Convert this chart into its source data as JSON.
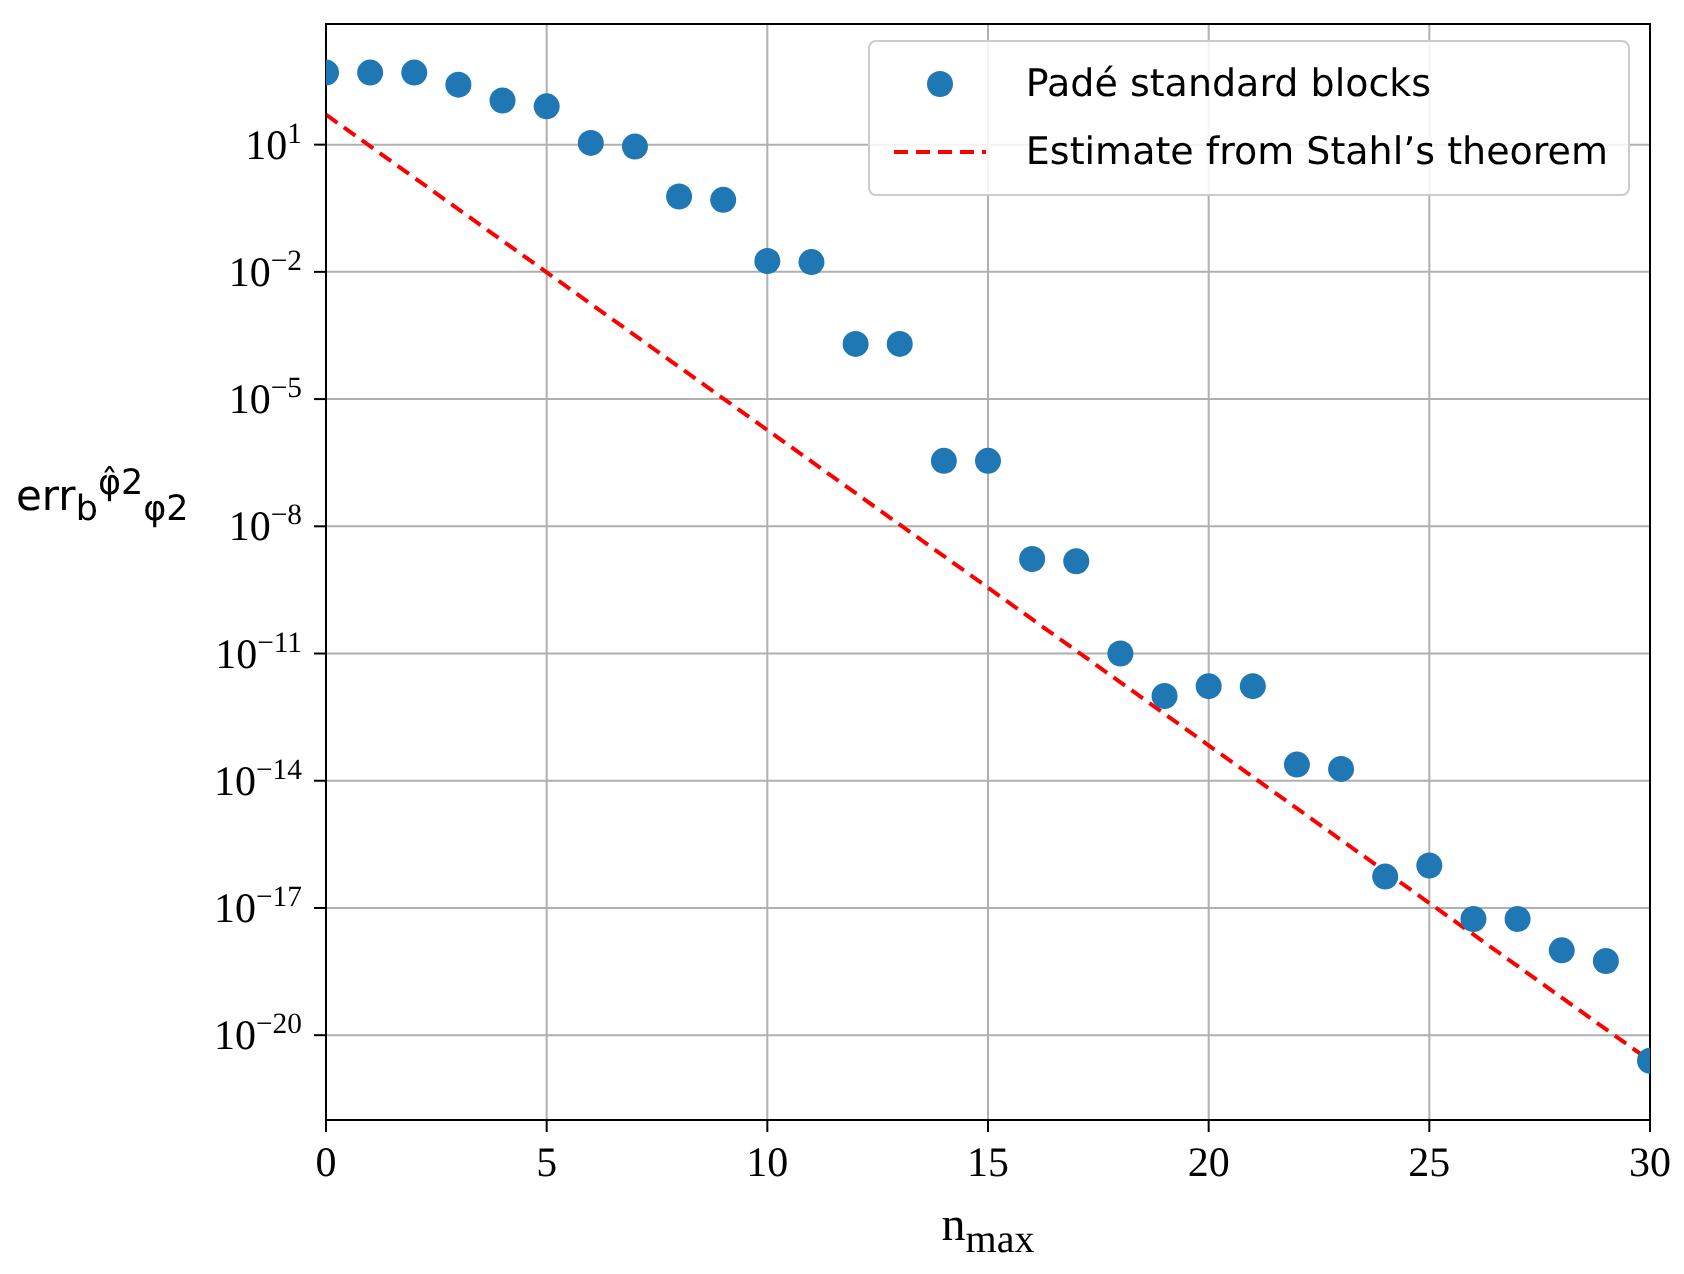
{
  "chart_data": {
    "type": "scatter",
    "xlabel": "n$_{max}$",
    "ylabel": "err$_{b}$$^{φ̂2}$$_{φ2}$",
    "xlim": [
      0,
      30
    ],
    "xticks": [
      0,
      5,
      10,
      15,
      20,
      25,
      30
    ],
    "ylim": [
      1e-22,
      7000.0
    ],
    "yticks": [
      {
        "value": 10,
        "label": "10$^{1}$"
      },
      {
        "value": 0.01,
        "label": "10$^{−2}$"
      },
      {
        "value": 1e-05,
        "label": "10$^{−5}$"
      },
      {
        "value": 1e-08,
        "label": "10$^{−8}$"
      },
      {
        "value": 1e-11,
        "label": "10$^{−11}$"
      },
      {
        "value": 1e-14,
        "label": "10$^{−14}$"
      },
      {
        "value": 1e-17,
        "label": "10$^{−17}$"
      },
      {
        "value": 1e-20,
        "label": "10$^{−20}$"
      }
    ],
    "log": "y",
    "grid": true,
    "legend": "top right",
    "series": [
      {
        "name": "Padé standard blocks",
        "marker": "circle",
        "color": "#1f77b4",
        "x": [
          0,
          1,
          2,
          3,
          4,
          5,
          6,
          7,
          8,
          9,
          10,
          11,
          12,
          13,
          14,
          15,
          16,
          17,
          18,
          19,
          20,
          21,
          22,
          23,
          24,
          25,
          26,
          27,
          28,
          29,
          30
        ],
        "values": [
          500,
          500,
          500,
          260,
          110,
          80,
          11,
          9,
          0.6,
          0.5,
          0.018,
          0.017,
          0.0002,
          0.0002,
          3.5e-07,
          3.5e-07,
          1.7e-09,
          1.5e-09,
          1e-11,
          1e-12,
          1.7e-12,
          1.7e-12,
          2.4e-14,
          1.9e-14,
          5.5e-17,
          1e-16,
          5.5e-18,
          5.5e-18,
          1e-18,
          5.6e-19,
          2.5e-21
        ]
      },
      {
        "name": "Estimate from Stahl’s theorem",
        "type": "line",
        "line_style": "dashed",
        "color": "#ff0000",
        "x": [
          0,
          30
        ],
        "values": [
          51,
          2.5e-21
        ]
      }
    ]
  }
}
